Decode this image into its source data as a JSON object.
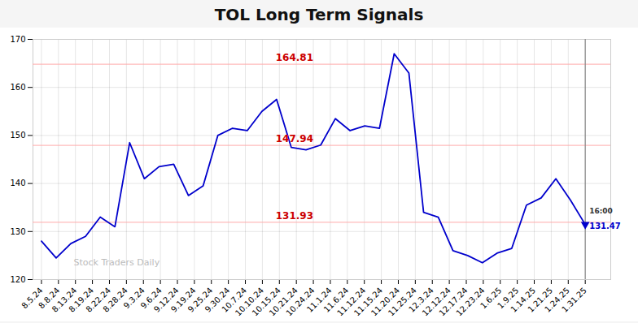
{
  "chart_data": {
    "type": "line",
    "title": "TOL Long Term Signals",
    "x": [
      0,
      0.864865,
      1.72973,
      2.594595,
      3.459459,
      4.324324,
      5.189189,
      6.054054,
      6.918919,
      7.783784,
      8.648649,
      9.513514,
      10.378378,
      11.243243,
      12.108108,
      12.972973,
      13.837838,
      14.702703,
      15.567568,
      16.432432,
      17.297297,
      18.162162,
      19.027027,
      19.891892,
      20.756757,
      21.621622,
      22.486486,
      23.351351,
      24.216216,
      25.081081,
      25.945946,
      26.810811,
      27.675676,
      28.540541,
      29.405405,
      30.27027,
      31.135135,
      32
    ],
    "values": [
      128.0,
      124.5,
      127.5,
      129.0,
      133.0,
      131.0,
      148.5,
      141.0,
      143.5,
      144.0,
      137.5,
      139.5,
      150.0,
      151.5,
      151.0,
      155.0,
      157.5,
      147.5,
      147.0,
      148.0,
      153.5,
      151.0,
      152.0,
      151.5,
      167.0,
      163.0,
      134.0,
      133.0,
      126.0,
      125.0,
      123.5,
      125.5,
      126.5,
      135.5,
      137.0,
      141.0,
      136.5,
      131.47
    ],
    "color": "#0000cc",
    "xlim": [
      -0.5,
      33.5
    ],
    "xticks": [
      {
        "value": 0,
        "label": "8.5.24"
      },
      {
        "value": 1,
        "label": "8.8.24"
      },
      {
        "value": 2,
        "label": "8.13.24"
      },
      {
        "value": 3,
        "label": "8.19.24"
      },
      {
        "value": 4,
        "label": "8.22.24"
      },
      {
        "value": 5,
        "label": "8.28.24"
      },
      {
        "value": 6,
        "label": "9.3.24"
      },
      {
        "value": 7,
        "label": "9.6.24"
      },
      {
        "value": 8,
        "label": "9.12.24"
      },
      {
        "value": 9,
        "label": "9.19.24"
      },
      {
        "value": 10,
        "label": "9.25.24"
      },
      {
        "value": 11,
        "label": "9.30.24"
      },
      {
        "value": 12,
        "label": "10.7.24"
      },
      {
        "value": 13,
        "label": "10.10.24"
      },
      {
        "value": 14,
        "label": "10.15.24"
      },
      {
        "value": 15,
        "label": "10.21.24"
      },
      {
        "value": 16,
        "label": "10.24.24"
      },
      {
        "value": 17,
        "label": "11.1.24"
      },
      {
        "value": 18,
        "label": "11.6.24"
      },
      {
        "value": 19,
        "label": "11.12.24"
      },
      {
        "value": 20,
        "label": "11.15.24"
      },
      {
        "value": 21,
        "label": "11.20.24"
      },
      {
        "value": 22,
        "label": "11.25.24"
      },
      {
        "value": 23,
        "label": "12.3.24"
      },
      {
        "value": 24,
        "label": "12.12.24"
      },
      {
        "value": 25,
        "label": "12.17.24"
      },
      {
        "value": 26,
        "label": "12.23.24"
      },
      {
        "value": 27,
        "label": "1.6.25"
      },
      {
        "value": 28,
        "label": "1.9.25"
      },
      {
        "value": 29,
        "label": "1.14.25"
      },
      {
        "value": 30,
        "label": "1.21.25"
      },
      {
        "value": 31,
        "label": "1.24.25"
      },
      {
        "value": 32,
        "label": "1.31.25"
      }
    ],
    "ylim": [
      120,
      170
    ],
    "yticks": [
      120,
      130,
      140,
      150,
      160,
      170
    ],
    "grid": true,
    "hlines": [
      {
        "y": 131.93,
        "label": "131.93"
      },
      {
        "y": 147.94,
        "label": "147.94"
      },
      {
        "y": 164.81,
        "label": "164.81"
      }
    ],
    "hline_color": "#ffaaaa",
    "annotation_color": "#cc0000",
    "vline": {
      "x": 32,
      "color": "#888888"
    },
    "end_marker": {
      "x": 32,
      "y": 131.47,
      "marker": "triangle-down",
      "color": "#0000cc",
      "label": "131.47",
      "time_label": "16:00"
    },
    "watermark": "Stock Traders Daily"
  }
}
